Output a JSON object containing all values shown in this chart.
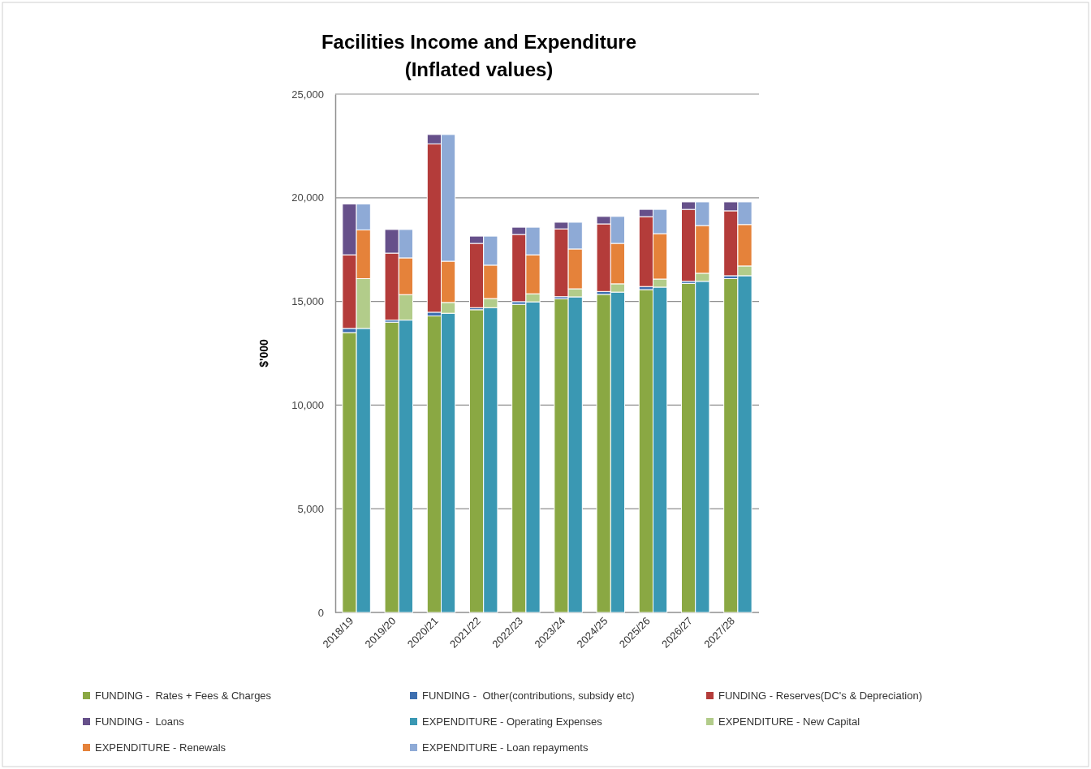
{
  "chart_data": {
    "type": "bar",
    "stacked": true,
    "title": "Facilities Income and Expenditure",
    "subtitle": "(Inflated values)",
    "ylabel": "$'000",
    "categories": [
      "2018/19",
      null,
      "2019/20",
      null,
      "2020/21",
      null,
      "2021/22",
      null,
      "2022/23",
      null,
      "2023/24",
      null,
      "2024/25",
      null,
      "2025/26",
      null,
      "2026/27",
      null,
      "2027/28",
      null
    ],
    "ylim": [
      0,
      25000
    ],
    "yticks": [
      {
        "value": 0,
        "label": "0"
      },
      {
        "value": 5000,
        "label": "5,000"
      },
      {
        "value": 10000,
        "label": "10,000"
      },
      {
        "value": 15000,
        "label": "15,000"
      },
      {
        "value": 20000,
        "label": "20,000"
      },
      {
        "value": 25000,
        "label": "25,000"
      }
    ],
    "grid": "y",
    "legend": "bottom",
    "series": [
      {
        "name": "FUNDING -  Rates + Fees & Charges",
        "color": "#8aa843",
        "values": [
          13500,
          null,
          14000,
          null,
          14300,
          null,
          14600,
          null,
          14860,
          null,
          15130,
          null,
          15340,
          null,
          15570,
          null,
          15870,
          null,
          16100,
          null
        ]
      },
      {
        "name": "FUNDING -  Other(contributions, subsidy etc)",
        "color": "#3d6fb0",
        "values": [
          200,
          null,
          100,
          null,
          180,
          null,
          100,
          null,
          130,
          null,
          100,
          null,
          140,
          null,
          150,
          null,
          100,
          null,
          140,
          null
        ]
      },
      {
        "name": "FUNDING - Reserves(DC's & Depreciation)",
        "color": "#b43c3a",
        "values": [
          3550,
          null,
          3230,
          null,
          8120,
          null,
          3100,
          null,
          3240,
          null,
          3270,
          null,
          3260,
          null,
          3370,
          null,
          3470,
          null,
          3130,
          null
        ]
      },
      {
        "name": "FUNDING -  Loans",
        "color": "#66508a",
        "values": [
          2450,
          null,
          1140,
          null,
          450,
          null,
          350,
          null,
          350,
          null,
          320,
          null,
          360,
          null,
          350,
          null,
          360,
          null,
          430,
          null
        ]
      },
      {
        "name": "EXPENDITURE - Operating Expenses",
        "color": "#3a98b3",
        "values": [
          null,
          13700,
          null,
          14100,
          null,
          14430,
          null,
          14700,
          null,
          14980,
          null,
          15220,
          null,
          15450,
          null,
          15690,
          null,
          15970,
          null,
          16240
        ]
      },
      {
        "name": "EXPENDITURE - New Capital",
        "color": "#b2cc8a",
        "values": [
          null,
          2400,
          null,
          1230,
          null,
          520,
          null,
          440,
          null,
          390,
          null,
          390,
          null,
          400,
          null,
          390,
          null,
          390,
          null,
          470
        ]
      },
      {
        "name": "EXPENDITURE - Renewals",
        "color": "#e5823a",
        "values": [
          null,
          2350,
          null,
          1770,
          null,
          1990,
          null,
          1610,
          null,
          1880,
          null,
          1920,
          null,
          1950,
          null,
          2190,
          null,
          2300,
          null,
          2000
        ]
      },
      {
        "name": "EXPENDITURE - Loan repayments",
        "color": "#8eaad6",
        "values": [
          null,
          1250,
          null,
          1370,
          null,
          6110,
          null,
          1400,
          null,
          1330,
          null,
          1290,
          null,
          1300,
          null,
          1170,
          null,
          1140,
          null,
          1090
        ]
      }
    ]
  }
}
